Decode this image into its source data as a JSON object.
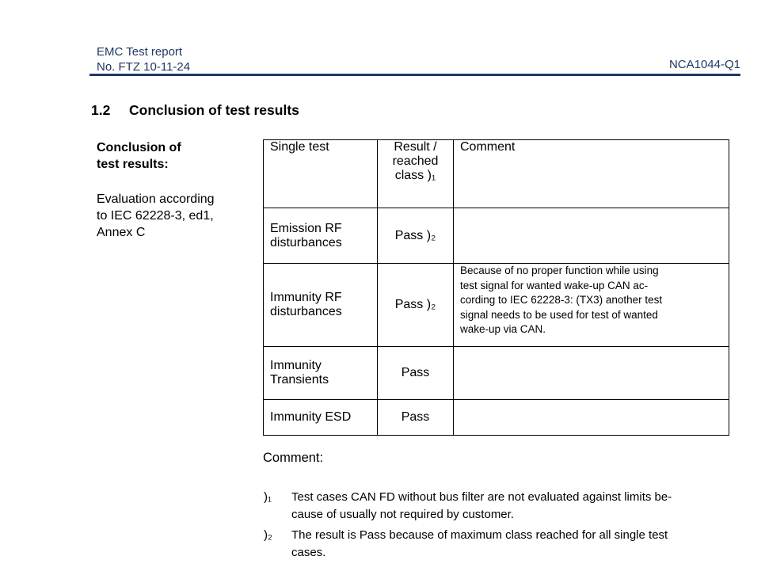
{
  "header": {
    "report_title": "EMC Test report",
    "report_no": "No. FTZ 10-11-24",
    "doc_id": "NCA1044-Q1"
  },
  "section": {
    "number": "1.2",
    "title": "Conclusion of test results"
  },
  "sidebar": {
    "label": "Conclusion of\ntest results:",
    "note": "Evaluation according\nto IEC 62228-3, ed1,\nAnnex C"
  },
  "table": {
    "columns": {
      "single_test": "Single test",
      "result": "Result /\nreached\nclass )₁",
      "comment": "Comment"
    },
    "rows": [
      {
        "test": "Emission RF\ndisturbances",
        "result": "Pass )₂",
        "comment": ""
      },
      {
        "test": "Immunity RF\ndisturbances",
        "result": "Pass )₂",
        "comment": "Because of no proper function while using\ntest signal for wanted wake-up CAN ac-\ncording to IEC 62228-3: (TX3) another test\nsignal needs to be used for test of wanted\nwake-up via CAN."
      },
      {
        "test": "Immunity\nTransients",
        "result": "Pass",
        "comment": ""
      },
      {
        "test": "Immunity ESD",
        "result": "Pass",
        "comment": ""
      }
    ]
  },
  "comment_heading": "Comment:",
  "footnotes": [
    {
      "marker": ")₁",
      "text": "Test cases CAN FD without bus filter are not evaluated against limits be-\ncause of usually not required by customer."
    },
    {
      "marker": ")₂",
      "text": "The result is Pass because of maximum class reached for all single test\ncases."
    }
  ],
  "colors": {
    "accent": "#1F3864",
    "rule": "#1F3864",
    "text": "#000000",
    "table_border": "#000000"
  }
}
